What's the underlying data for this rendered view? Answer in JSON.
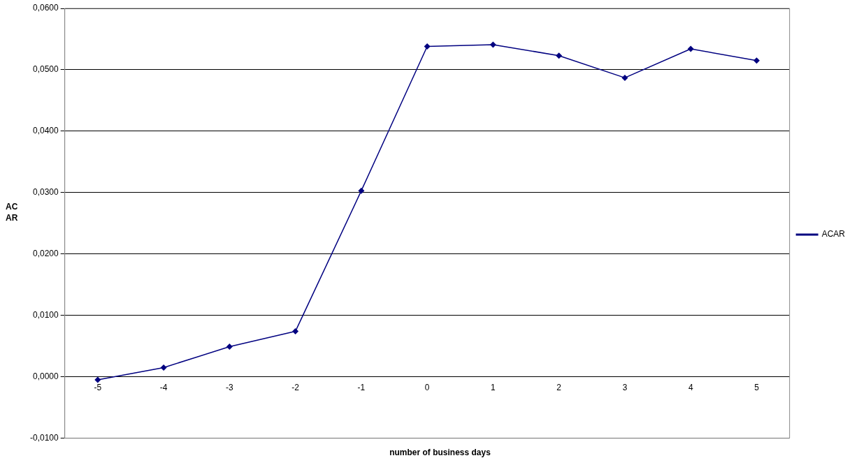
{
  "chart_data": {
    "type": "line",
    "xlabel": "number of business days",
    "ylabel": "ACAR",
    "categories": [
      "-5",
      "-4",
      "-3",
      "-2",
      "-1",
      "0",
      "1",
      "2",
      "3",
      "4",
      "5"
    ],
    "series": [
      {
        "name": "ACAR",
        "color": "#000080",
        "values": [
          -0.0005,
          0.0015,
          0.0049,
          0.0074,
          0.0303,
          0.0538,
          0.0541,
          0.0523,
          0.0487,
          0.0534,
          0.0515
        ]
      }
    ],
    "ylim": [
      -0.01,
      0.06
    ],
    "yticks": [
      {
        "value": -0.01,
        "label": "-0,0100"
      },
      {
        "value": 0,
        "label": "0,0000"
      },
      {
        "value": 0.01,
        "label": "0,0100"
      },
      {
        "value": 0.02,
        "label": "0,0200"
      },
      {
        "value": 0.03,
        "label": "0,0300"
      },
      {
        "value": 0.04,
        "label": "0,0400"
      },
      {
        "value": 0.05,
        "label": "0,0500"
      },
      {
        "value": 0.06,
        "label": "0,0600"
      }
    ],
    "grid": "y",
    "legend": "right",
    "marker": "diamond",
    "line_style": "solid"
  }
}
